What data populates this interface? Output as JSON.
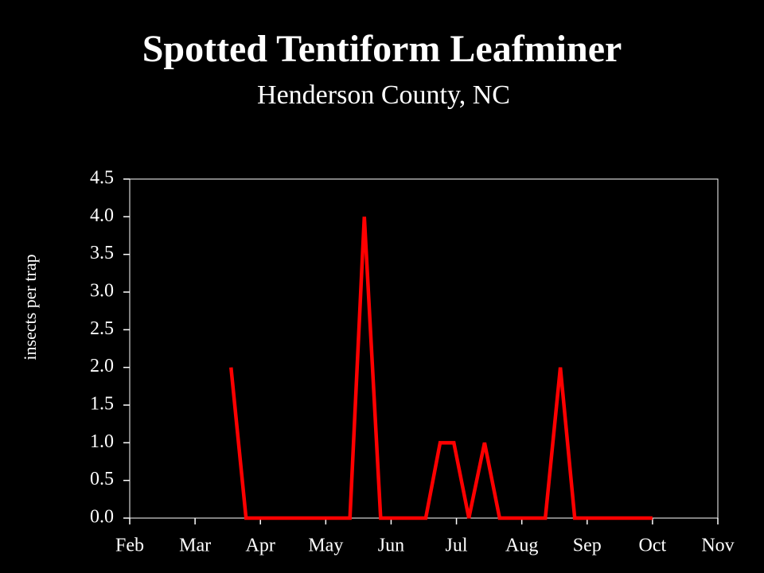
{
  "chart_data": {
    "type": "line",
    "title": "Spotted Tentiform Leafminer",
    "subtitle": "Henderson County, NC",
    "y_label": "insects per trap",
    "x": [
      3.55,
      3.78,
      5.37,
      5.59,
      5.84,
      6.53,
      6.75,
      6.96,
      7.19,
      7.43,
      7.66,
      8.36,
      8.59,
      8.81,
      10.0
    ],
    "series": [
      {
        "color": "#ff0000",
        "values": [
          2,
          0,
          0,
          4,
          0,
          0,
          1,
          1,
          0,
          1,
          0,
          0,
          2,
          0,
          0
        ]
      }
    ],
    "xlim": [
      2,
      11
    ],
    "xticks": [
      {
        "value": 2,
        "label": "Feb"
      },
      {
        "value": 3,
        "label": "Mar"
      },
      {
        "value": 4,
        "label": "Apr"
      },
      {
        "value": 5,
        "label": "May"
      },
      {
        "value": 6,
        "label": "Jun"
      },
      {
        "value": 7,
        "label": "Jul"
      },
      {
        "value": 8,
        "label": "Aug"
      },
      {
        "value": 9,
        "label": "Sep"
      },
      {
        "value": 10,
        "label": "Oct"
      },
      {
        "value": 11,
        "label": "Nov"
      }
    ],
    "ylim": [
      0,
      4.5
    ],
    "yticks": [
      {
        "value": 0,
        "label": "0.0"
      },
      0.5,
      {
        "value": 1,
        "label": "1.0"
      },
      1.5,
      {
        "value": 2,
        "label": "2.0"
      },
      2.5,
      {
        "value": 3,
        "label": "3.0"
      },
      3.5,
      {
        "value": 4,
        "label": "4.0"
      },
      4.5
    ]
  }
}
